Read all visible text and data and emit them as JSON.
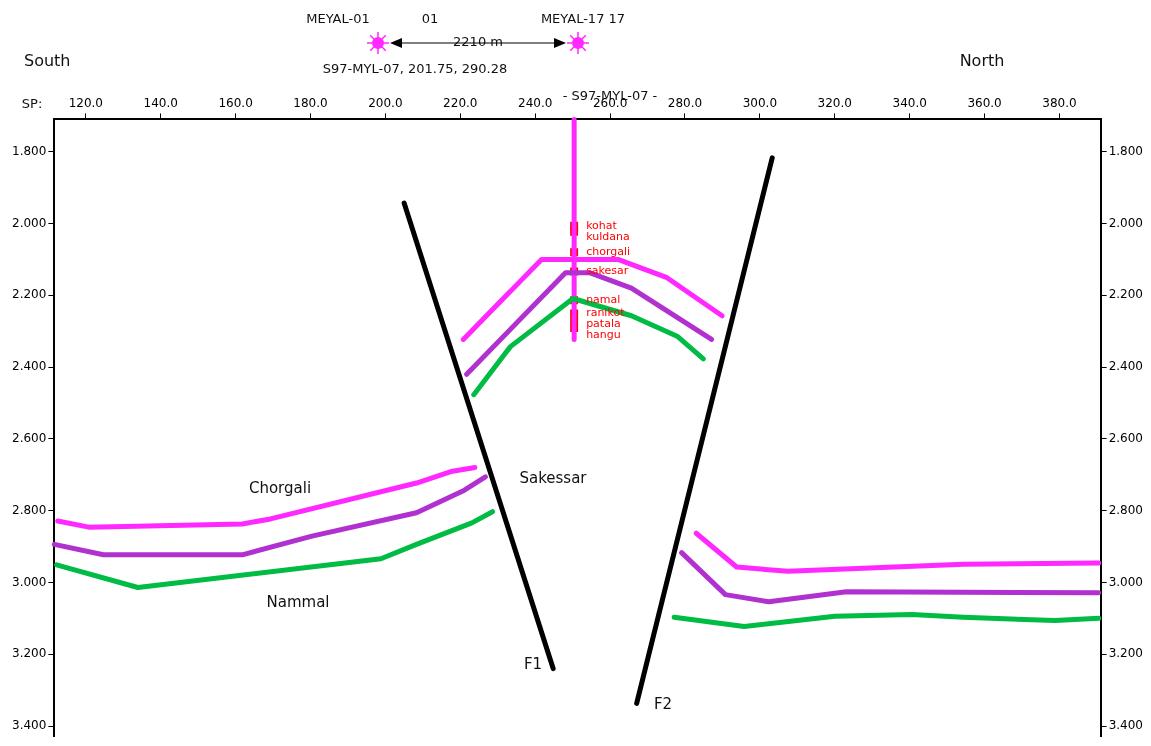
{
  "chart_data": {
    "type": "line",
    "xlabel": "SP:",
    "xlim": [
      111.6,
      391
    ],
    "ylim": [
      3.43,
      1.71
    ],
    "y2lim": [
      3.43,
      1.71
    ],
    "xticks": [
      {
        "value": 120,
        "label": "120.0"
      },
      {
        "value": 140,
        "label": "140.0"
      },
      {
        "value": 160,
        "label": "160.0"
      },
      {
        "value": 180,
        "label": "180.0"
      },
      {
        "value": 200,
        "label": "200.0"
      },
      {
        "value": 220,
        "label": "220.0"
      },
      {
        "value": 240,
        "label": "240.0"
      },
      {
        "value": 260,
        "label": "260.0"
      },
      {
        "value": 280,
        "label": "280.0"
      },
      {
        "value": 300,
        "label": "300.0"
      },
      {
        "value": 320,
        "label": "320.0"
      },
      {
        "value": 340,
        "label": "340.0"
      },
      {
        "value": 360,
        "label": "360.0"
      },
      {
        "value": 380,
        "label": "380.0"
      }
    ],
    "yticks": [
      {
        "value": 1.8,
        "label": "1.800"
      },
      {
        "value": 2,
        "label": "2.000"
      },
      {
        "value": 2.2,
        "label": "2.200"
      },
      {
        "value": 2.4,
        "label": "2.400"
      },
      {
        "value": 2.6,
        "label": "2.600"
      },
      {
        "value": 2.8,
        "label": "2.800"
      },
      {
        "value": 3,
        "label": "3.000"
      },
      {
        "value": 3.2,
        "label": "3.200"
      },
      {
        "value": 3.4,
        "label": "3.400"
      }
    ],
    "y2ticks": [
      {
        "value": 1.8,
        "label": "1.800"
      },
      {
        "value": 2,
        "label": "2.000"
      },
      {
        "value": 2.2,
        "label": "2.200"
      },
      {
        "value": 2.4,
        "label": "2.400"
      },
      {
        "value": 2.6,
        "label": "2.600"
      },
      {
        "value": 2.8,
        "label": "2.800"
      },
      {
        "value": 3,
        "label": "3.000"
      },
      {
        "value": 3.2,
        "label": "3.200"
      },
      {
        "value": 3.4,
        "label": "3.400"
      }
    ],
    "grid": false,
    "legend": false,
    "marker": "none",
    "series": [
      {
        "color": "#ff29ff",
        "x": [
          112.5,
          120.8,
          161.8,
          169.3,
          208.3,
          217.5,
          223.9
        ],
        "values": [
          2.829,
          2.846,
          2.837,
          2.823,
          2.723,
          2.691,
          2.68
        ]
      },
      {
        "color": "#b030d0",
        "x": [
          111.6,
          124.7,
          161.8,
          180.4,
          208.3,
          221.1,
          226.7
        ],
        "values": [
          2.894,
          2.923,
          2.923,
          2.871,
          2.806,
          2.743,
          2.706
        ]
      },
      {
        "color": "#00bb44",
        "x": [
          112.2,
          133.9,
          198.8,
          208.3,
          223.1,
          228.6
        ],
        "values": [
          2.951,
          3.014,
          2.934,
          2.894,
          2.834,
          2.803
        ]
      },
      {
        "color": "#ff29ff",
        "x": [
          220.8,
          241.7,
          262.1,
          275.2,
          289.9
        ],
        "values": [
          2.323,
          2.1,
          2.1,
          2.151,
          2.257
        ]
      },
      {
        "color": "#b030d0",
        "x": [
          221.7,
          248.1,
          254.5,
          265.7,
          287.1
        ],
        "values": [
          2.42,
          2.137,
          2.137,
          2.18,
          2.323
        ]
      },
      {
        "color": "#00bb44",
        "x": [
          223.6,
          233.4,
          250.1,
          265.7,
          277.9,
          284.9
        ],
        "values": [
          2.477,
          2.343,
          2.209,
          2.257,
          2.314,
          2.377
        ]
      },
      {
        "color": "#ff29ff",
        "x": [
          283,
          293.8,
          307.5,
          354.3,
          390.5
        ],
        "values": [
          2.863,
          2.957,
          2.969,
          2.949,
          2.946
        ]
      },
      {
        "color": "#b030d0",
        "x": [
          279.1,
          290.8,
          302.4,
          323.1,
          390.5
        ],
        "values": [
          2.917,
          3.034,
          3.054,
          3.026,
          3.029
        ]
      },
      {
        "color": "#00bb44",
        "x": [
          277.1,
          295.8,
          320,
          340.6,
          354.3,
          378.8,
          390.5
        ],
        "values": [
          3.097,
          3.123,
          3.094,
          3.089,
          3.097,
          3.106,
          3.1
        ]
      },
      {
        "color": "#000000",
        "x": [
          205,
          244.8
        ],
        "values": [
          1.943,
          3.24
        ]
      },
      {
        "color": "#000000",
        "x": [
          303.3,
          267.1
        ],
        "values": [
          1.817,
          3.337
        ]
      },
      {
        "color": "#ff29ff",
        "x": [
          250.4,
          250.4
        ],
        "values": [
          1.71,
          2.323
        ]
      },
      {
        "type": "scatter",
        "marker": "square",
        "color": "#ff0000",
        "x": [
          250.4,
          250.4,
          250.4,
          250.4,
          250.4,
          250.4,
          250.4,
          250.4
        ],
        "values": [
          2.006,
          2.023,
          2.08,
          2.134,
          2.214,
          2.251,
          2.271,
          2.291
        ],
        "value_labels": [
          "kohat",
          "kuldana",
          "chorgali",
          "sakesar",
          "namal",
          "ranikot",
          "patala",
          "hangu"
        ]
      }
    ],
    "annotations": [
      "South",
      "North",
      "MEYAL-01",
      "01",
      "MEYAL-17 17",
      "2210 m",
      "S97-MYL-07, 201.75, 290.28",
      "- S97-MYL-07 -",
      "Chorgali",
      "Nammal",
      "Sakessar",
      "F1",
      "F2"
    ]
  }
}
